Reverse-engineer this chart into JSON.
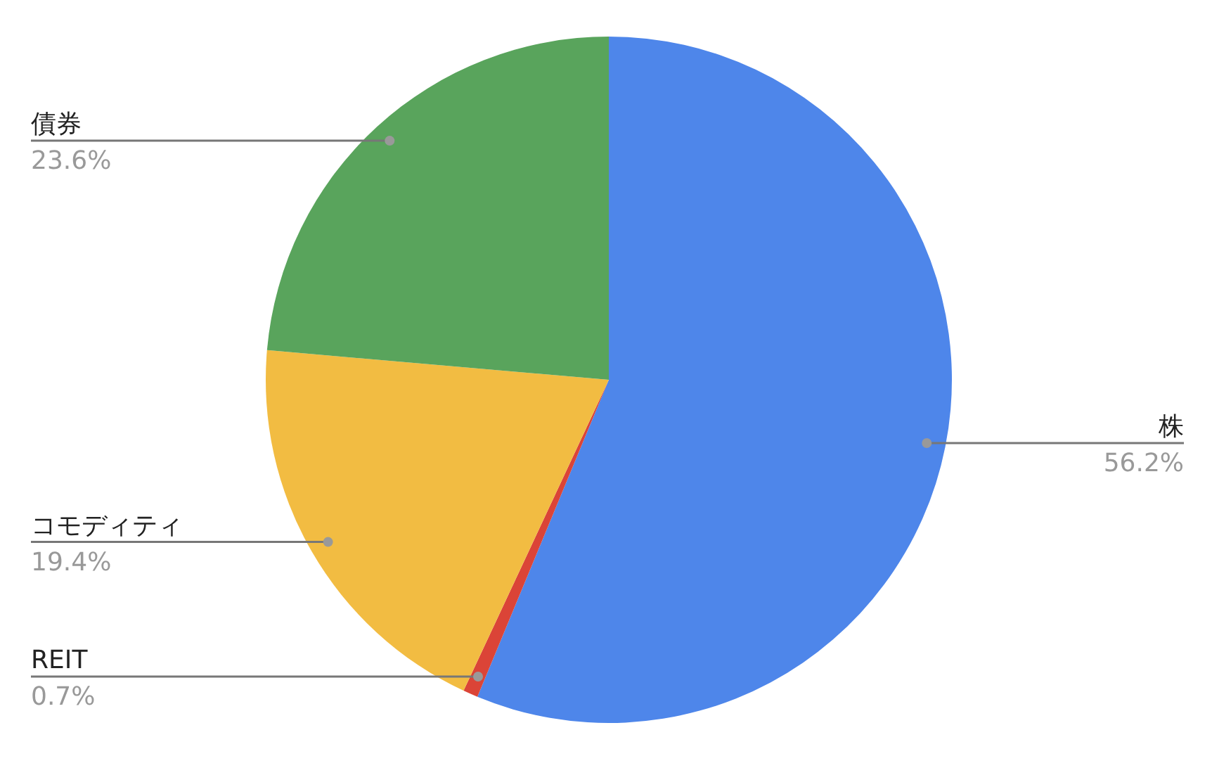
{
  "chart_data": {
    "type": "pie",
    "categories": [
      "株",
      "REIT",
      "コモディティ",
      "債券"
    ],
    "values": [
      56.2,
      0.7,
      19.4,
      23.6
    ],
    "colors": [
      "#4e86ea",
      "#db4437",
      "#f2bc42",
      "#59a45c"
    ],
    "value_labels": [
      "56.2%",
      "0.7%",
      "19.4%",
      "23.6%"
    ]
  }
}
